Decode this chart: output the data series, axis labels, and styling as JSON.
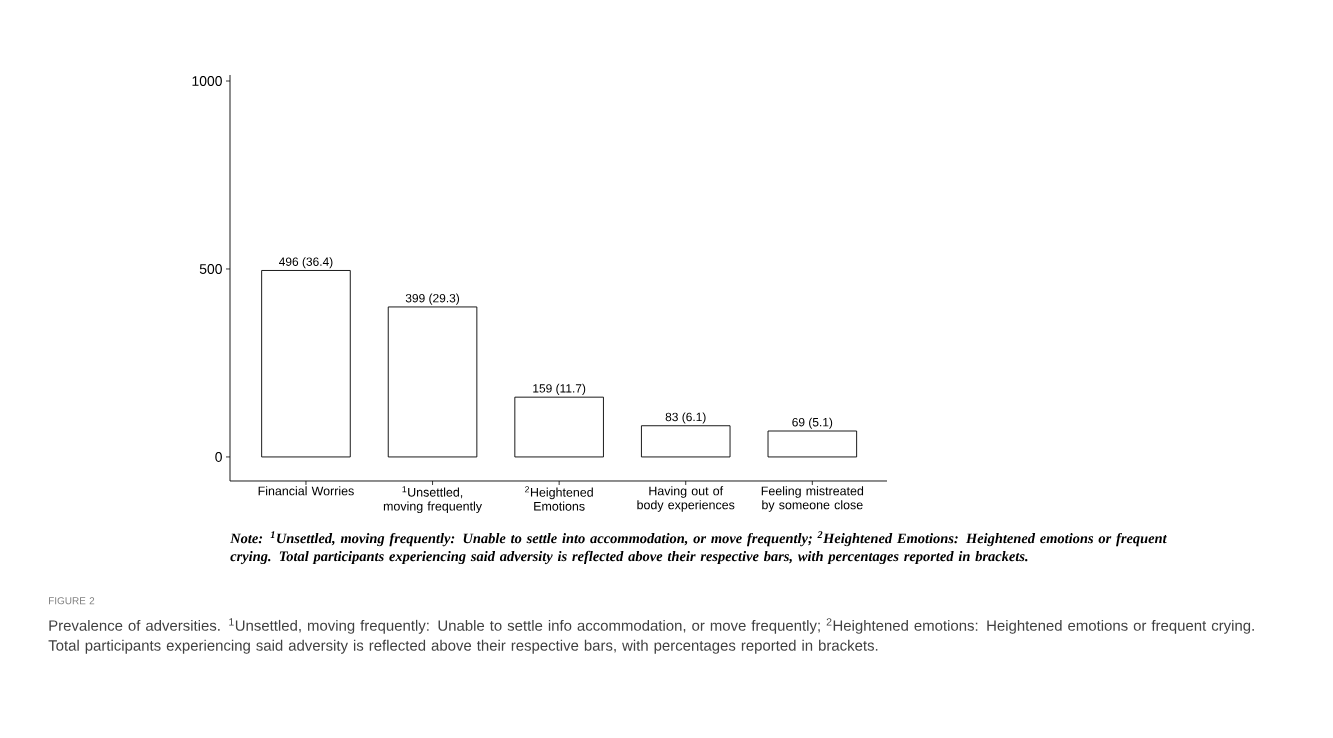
{
  "chart_data": {
    "type": "bar",
    "categories": [
      "Financial Worries",
      "$^{1}$Unsettled, moving frequently",
      "$^{2}$Heightened Emotions",
      "Having out of body experiences",
      "Feeling mistreated by someone close"
    ],
    "values": [
      496,
      399,
      159,
      83,
      69
    ],
    "value_labels": [
      "496 (36.4)",
      "399 (29.3)",
      "159 (11.7)",
      "83 (6.1)",
      "69 (5.1)"
    ],
    "color": "#ffffff",
    "ylim": [
      -64,
      1016
    ],
    "yticks": [
      0,
      500,
      1000
    ],
    "annotations": [
      "Note: $^{1}$Unsettled, moving frequently: Unable to settle into accommodation, or move frequently; $^{2}$Heightened Emotions: Heightened emotions or frequent crying. Total participants experiencing said adversity is reflected above their respective bars, with percentages reported in brackets.",
      "FIGURE 2",
      "Prevalence of adversities. $^{1}$Unsettled, moving frequently: Unable to settle info accommodation, or move frequently; $^{2}$Heightened emotions: Heightened emotions or frequent crying. Total participants experiencing said adversity is reflected above their respective bars, with percentages reported in brackets."
    ]
  }
}
